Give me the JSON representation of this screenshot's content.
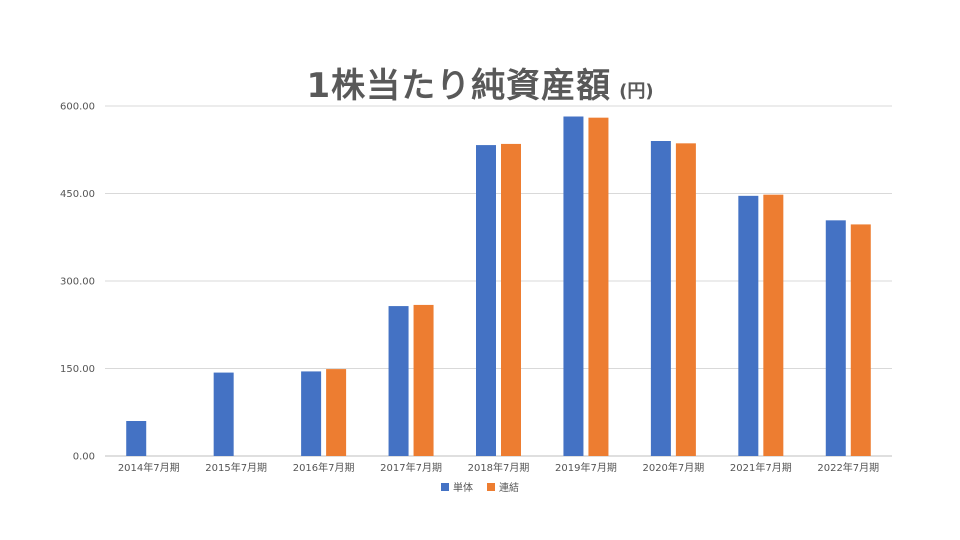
{
  "chart_data": {
    "type": "bar",
    "title": "1株当たり純資産額",
    "title_unit": "(円)",
    "categories": [
      "2014年7月期",
      "2015年7月期",
      "2016年7月期",
      "2017年7月期",
      "2018年7月期",
      "2019年7月期",
      "2020年7月期",
      "2021年7月期",
      "2022年7月期"
    ],
    "series": [
      {
        "name": "単体",
        "color": "#4472C4",
        "values": [
          60,
          143,
          145,
          257,
          533,
          582,
          540,
          446,
          404
        ]
      },
      {
        "name": "連結",
        "color": "#ED7D31",
        "values": [
          null,
          null,
          149,
          259,
          535,
          580,
          536,
          448,
          397
        ]
      }
    ],
    "ylim": [
      0,
      600
    ],
    "yticks": [
      "0.00",
      "150.00",
      "300.00",
      "450.00",
      "600.00"
    ],
    "ytick_values": [
      0,
      150,
      300,
      450,
      600
    ],
    "grid": true,
    "legend_position": "bottom"
  }
}
